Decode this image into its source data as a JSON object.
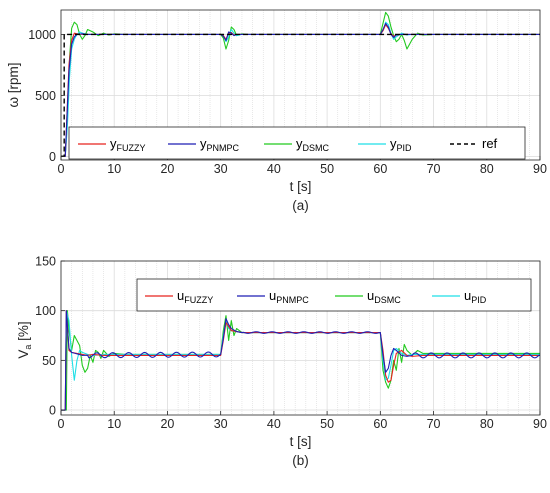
{
  "chart_data": [
    {
      "type": "line",
      "caption": "(a)",
      "xlabel": "t [s]",
      "ylabel": "ω [rpm]",
      "xlim": [
        0,
        90
      ],
      "ylim": [
        -30,
        1200
      ],
      "xticks": [
        0,
        10,
        20,
        30,
        40,
        50,
        60,
        70,
        80,
        90
      ],
      "yticks": [
        0,
        500,
        1000
      ],
      "grid": true,
      "minor_grid_x": 2,
      "legend_position": "inside, lower-center, one row",
      "series": [
        {
          "name": "y",
          "sub": "FUZZY",
          "color": "#e8231f",
          "dashed": false,
          "x": [
            0,
            0.8,
            1.5,
            2.0,
            2.5,
            3.0,
            4.0,
            5.0,
            6.0,
            30.0,
            30.5,
            31.0,
            31.5,
            32.0,
            32.5,
            33.0,
            34.0,
            60.0,
            60.5,
            61.0,
            61.5,
            62.0,
            62.5,
            63.0,
            64.0,
            66.0,
            90
          ],
          "y": [
            0,
            0,
            750,
            950,
            1010,
            1005,
            1000,
            1000,
            1000,
            1000,
            990,
            960,
            1010,
            1015,
            995,
            1000,
            1000,
            1000,
            1030,
            1080,
            1050,
            1005,
            985,
            995,
            1000,
            1000,
            1000
          ]
        },
        {
          "name": "y",
          "sub": "PNMPC",
          "color": "#1f1fb4",
          "dashed": false,
          "x": [
            0,
            0.8,
            1.5,
            2.0,
            2.5,
            3.0,
            4.0,
            5.0,
            6.0,
            30.0,
            30.5,
            31.0,
            31.5,
            32.0,
            32.5,
            33.0,
            34.0,
            60.0,
            60.5,
            61.0,
            61.5,
            62.0,
            62.5,
            63.0,
            64.0,
            66.0,
            90
          ],
          "y": [
            0,
            0,
            700,
            920,
            980,
            1000,
            1005,
            1000,
            1000,
            1000,
            985,
            950,
            1020,
            1010,
            990,
            1000,
            1000,
            1000,
            1040,
            1090,
            1060,
            1000,
            975,
            995,
            1000,
            1000,
            1000
          ]
        },
        {
          "name": "y",
          "sub": "DSMC",
          "color": "#22c91e",
          "dashed": false,
          "x": [
            0,
            0.8,
            1.2,
            1.6,
            2.0,
            2.5,
            3.0,
            3.5,
            4.0,
            4.5,
            5.0,
            6.0,
            7.0,
            8.0,
            9.0,
            10.0,
            12.0,
            14.0,
            30.0,
            30.5,
            31.0,
            31.5,
            32.0,
            32.5,
            33.0,
            34.0,
            35.0,
            60.0,
            60.5,
            61.0,
            61.5,
            62.0,
            62.5,
            63.0,
            63.5,
            64.0,
            64.5,
            65.0,
            66.0,
            67.0,
            68.0,
            70.0,
            90
          ],
          "y": [
            0,
            0,
            300,
            800,
            1050,
            1100,
            1080,
            1000,
            960,
            990,
            1040,
            1020,
            990,
            1010,
            995,
            1005,
            1000,
            1000,
            1000,
            970,
            880,
            950,
            1060,
            1040,
            990,
            1005,
            1000,
            1000,
            1090,
            1180,
            1150,
            1060,
            990,
            940,
            960,
            1000,
            950,
            880,
            960,
            1010,
            995,
            1000,
            1000
          ]
        },
        {
          "name": "y",
          "sub": "PID",
          "color": "#1fdfe6",
          "dashed": false,
          "x": [
            0,
            0.8,
            1.2,
            1.6,
            2.0,
            2.5,
            3.0,
            3.5,
            4.0,
            5.0,
            6.0,
            8.0,
            10.0,
            30.0,
            30.5,
            31.0,
            31.5,
            32.0,
            32.5,
            33.0,
            34.0,
            60.0,
            60.5,
            61.0,
            61.5,
            62.0,
            62.5,
            63.0,
            64.0,
            65.0,
            66.0,
            90
          ],
          "y": [
            0,
            0,
            250,
            650,
            880,
            960,
            1000,
            1020,
            1010,
            1000,
            1000,
            1000,
            1000,
            1000,
            990,
            940,
            980,
            1040,
            1010,
            990,
            1000,
            1000,
            1030,
            1100,
            1080,
            1010,
            960,
            980,
            1010,
            995,
            1000,
            1000
          ]
        },
        {
          "name": "ref",
          "sub": "",
          "color": "#000000",
          "dashed": true,
          "x": [
            0,
            0.6,
            0.6,
            90
          ],
          "y": [
            0,
            0,
            1000,
            1000
          ]
        }
      ]
    },
    {
      "type": "line",
      "caption": "(b)",
      "xlabel": "t [s]",
      "ylabel": "V",
      "ylabel_sub": "a",
      "ylabel_unit": " [%]",
      "xlim": [
        0,
        90
      ],
      "ylim": [
        -5,
        150
      ],
      "xticks": [
        0,
        10,
        20,
        30,
        40,
        50,
        60,
        70,
        80,
        90
      ],
      "yticks": [
        0,
        50,
        100,
        150
      ],
      "grid": true,
      "minor_grid_x": 2,
      "legend_position": "top-right",
      "series": [
        {
          "name": "u",
          "sub": "FUZZY",
          "color": "#e8231f",
          "dashed": false,
          "x": [
            0,
            0.8,
            1.0,
            1.5,
            2.0,
            3.0,
            4.0,
            5.0,
            6.0,
            8.0,
            10.0,
            30.0,
            30.5,
            31.0,
            31.5,
            32.0,
            33.0,
            34.0,
            36.0,
            60.0,
            60.5,
            61.0,
            61.5,
            62.0,
            62.5,
            63.0,
            64.0,
            65.0,
            66.0,
            68.0,
            90
          ],
          "y": [
            0,
            0,
            100,
            60,
            58,
            57,
            56,
            55,
            56,
            55,
            55,
            55,
            70,
            88,
            84,
            80,
            79,
            78,
            78,
            78,
            60,
            35,
            28,
            30,
            45,
            57,
            60,
            55,
            54,
            55,
            55
          ]
        },
        {
          "name": "u",
          "sub": "PNMPC",
          "color": "#1f1fb4",
          "dashed": false,
          "osc": true,
          "x": [
            0,
            0.8,
            1.0,
            1.5,
            2.0,
            4.0,
            30.0,
            30.5,
            31.0,
            31.5,
            32.0,
            33.0,
            34.0,
            36.0,
            60.0,
            60.5,
            61.0,
            61.5,
            62.0,
            62.5,
            63.0,
            64.0,
            65.0,
            66.0,
            90
          ],
          "y": [
            0,
            0,
            100,
            62,
            58,
            55,
            56,
            72,
            92,
            86,
            82,
            79,
            78,
            78,
            78,
            55,
            38,
            42,
            55,
            62,
            60,
            55,
            54,
            55,
            55
          ]
        },
        {
          "name": "u",
          "sub": "DSMC",
          "color": "#22c91e",
          "dashed": false,
          "x": [
            0,
            0.8,
            1.0,
            1.2,
            1.5,
            2.0,
            2.5,
            3.0,
            3.5,
            4.0,
            4.5,
            5.0,
            5.5,
            6.0,
            6.5,
            7.0,
            7.5,
            8.0,
            9.0,
            10.0,
            12.0,
            14.0,
            30.0,
            30.5,
            31.0,
            31.5,
            32.0,
            32.5,
            33.0,
            34.0,
            36.0,
            60.0,
            60.5,
            61.0,
            61.5,
            62.0,
            62.5,
            63.0,
            63.5,
            64.0,
            64.5,
            65.0,
            66.0,
            67.0,
            68.0,
            90
          ],
          "y": [
            0,
            0,
            0,
            100,
            80,
            60,
            75,
            70,
            65,
            45,
            38,
            42,
            55,
            48,
            60,
            58,
            52,
            60,
            54,
            57,
            56,
            56,
            56,
            80,
            95,
            70,
            90,
            75,
            82,
            78,
            78,
            78,
            40,
            28,
            22,
            30,
            50,
            40,
            62,
            48,
            66,
            60,
            55,
            60,
            57,
            57
          ]
        },
        {
          "name": "u",
          "sub": "PID",
          "color": "#1fdfe6",
          "dashed": false,
          "x": [
            0,
            0.8,
            1.0,
            1.5,
            2.0,
            2.5,
            3.0,
            3.5,
            4.0,
            5.0,
            6.0,
            8.0,
            10.0,
            30.0,
            30.5,
            31.0,
            31.5,
            32.0,
            33.0,
            34.0,
            60.0,
            60.5,
            61.0,
            61.5,
            62.0,
            62.5,
            63.0,
            64.0,
            65.0,
            66.0,
            90
          ],
          "y": [
            0,
            0,
            100,
            90,
            55,
            30,
            50,
            60,
            58,
            56,
            55,
            56,
            56,
            56,
            75,
            90,
            82,
            80,
            79,
            78,
            78,
            50,
            30,
            32,
            45,
            60,
            62,
            57,
            55,
            56,
            56
          ]
        }
      ]
    }
  ]
}
